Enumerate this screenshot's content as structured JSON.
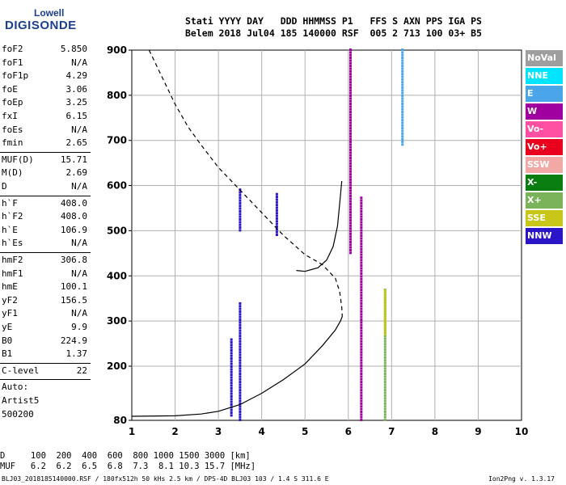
{
  "logo": {
    "line1": "Lowell",
    "line2": "DIGISONDE"
  },
  "header": {
    "row1": "Stati YYYY DAY   DDD HHMMSS P1   FFS S AXN PPS IGA PS",
    "row2": "Belem 2018 Jul04 185 140000 RSF  005 2 713 100 03+ B5"
  },
  "params": {
    "group1": [
      {
        "label": "foF2",
        "value": "5.850"
      },
      {
        "label": "foF1",
        "value": "N/A"
      },
      {
        "label": "foF1p",
        "value": "4.29"
      },
      {
        "label": "foE",
        "value": "3.06"
      },
      {
        "label": "foEp",
        "value": "3.25"
      },
      {
        "label": "fxI",
        "value": "6.15"
      },
      {
        "label": "foEs",
        "value": "N/A"
      },
      {
        "label": "fmin",
        "value": "2.65"
      }
    ],
    "group2": [
      {
        "label": "MUF(D)",
        "value": "15.71"
      },
      {
        "label": "M(D)",
        "value": "2.69"
      },
      {
        "label": "D",
        "value": "N/A"
      }
    ],
    "group3": [
      {
        "label": "h`F",
        "value": "408.0"
      },
      {
        "label": "h`F2",
        "value": "408.0"
      },
      {
        "label": "h`E",
        "value": "106.9"
      },
      {
        "label": "h`Es",
        "value": "N/A"
      }
    ],
    "group4": [
      {
        "label": "hmF2",
        "value": "306.8"
      },
      {
        "label": "hmF1",
        "value": "N/A"
      },
      {
        "label": "hmE",
        "value": "100.1"
      },
      {
        "label": "yF2",
        "value": "156.5"
      },
      {
        "label": "yF1",
        "value": "N/A"
      },
      {
        "label": "yE",
        "value": "9.9"
      },
      {
        "label": "B0",
        "value": "224.9"
      },
      {
        "label": "B1",
        "value": "1.37"
      }
    ],
    "group5": [
      {
        "label": "C-level",
        "value": "22"
      }
    ],
    "group6": [
      {
        "label": "Auto:",
        "value": ""
      },
      {
        "label": "Artist5",
        "value": ""
      },
      {
        "label": "500200",
        "value": ""
      }
    ]
  },
  "legend": [
    {
      "label": "NoVal",
      "color": "#9e9e9e",
      "text_color": "#ffffff"
    },
    {
      "label": "NNE",
      "color": "#00e5ff",
      "text_color": "#ffffff"
    },
    {
      "label": "E",
      "color": "#4aa6e8",
      "text_color": "#ffffff"
    },
    {
      "label": "W",
      "color": "#a0009f",
      "text_color": "#ffffff"
    },
    {
      "label": "Vo-",
      "color": "#ff4fa3",
      "text_color": "#ffffff"
    },
    {
      "label": "Vo+",
      "color": "#e8001c",
      "text_color": "#ffffff"
    },
    {
      "label": "SSW",
      "color": "#f2a9a6",
      "text_color": "#ffffff"
    },
    {
      "label": "X-",
      "color": "#0a7d10",
      "text_color": "#ffffff"
    },
    {
      "label": "X+",
      "color": "#7ab35a",
      "text_color": "#ffffff"
    },
    {
      "label": "SSE",
      "color": "#c9c61a",
      "text_color": "#ffffff"
    },
    {
      "label": "NNW",
      "color": "#2a16c8",
      "text_color": "#ffffff"
    }
  ],
  "footer": {
    "row1": "D     100  200  400  600  800 1000 1500 3000 [km]",
    "row2": "MUF   6.2  6.2  6.5  6.8  7.3  8.1 10.3 15.7 [MHz]"
  },
  "caption": "BLJ03_2018185140000.RSF / 180fx512h 50 kHs 2.5 km / DPS-4D BLJ03 103 / 1.4 S 311.6 E",
  "version": "Ion2Png v. 1.3.17",
  "chart_data": {
    "type": "scatter",
    "xlabel": "",
    "ylabel": "",
    "xlim": [
      1,
      10
    ],
    "ylim": [
      80,
      900
    ],
    "xticks": [
      1,
      2,
      3,
      4,
      5,
      6,
      7,
      8,
      9,
      10
    ],
    "yticks": [
      80,
      200,
      300,
      400,
      500,
      600,
      700,
      800,
      900
    ],
    "grid": true,
    "series": [
      {
        "style": "dashed",
        "points": [
          [
            1.4,
            900
          ],
          [
            1.7,
            840
          ],
          [
            2.0,
            780
          ],
          [
            2.3,
            730
          ],
          [
            2.6,
            690
          ],
          [
            3.0,
            640
          ],
          [
            3.5,
            590
          ],
          [
            4.0,
            540
          ],
          [
            4.5,
            490
          ],
          [
            5.0,
            447
          ],
          [
            5.4,
            425
          ],
          [
            5.7,
            395
          ],
          [
            5.8,
            365
          ],
          [
            5.85,
            330
          ],
          [
            5.86,
            310
          ]
        ]
      },
      {
        "style": "solid",
        "points": [
          [
            1.0,
            89
          ],
          [
            2.0,
            90
          ],
          [
            2.6,
            94
          ],
          [
            3.0,
            100
          ],
          [
            3.5,
            115
          ],
          [
            4.0,
            140
          ],
          [
            4.5,
            170
          ],
          [
            5.0,
            205
          ],
          [
            5.4,
            245
          ],
          [
            5.7,
            280
          ],
          [
            5.82,
            300
          ],
          [
            5.86,
            310
          ]
        ]
      },
      {
        "style": "solid",
        "points": [
          [
            4.8,
            412
          ],
          [
            5.0,
            410
          ],
          [
            5.3,
            418
          ],
          [
            5.5,
            435
          ],
          [
            5.65,
            465
          ],
          [
            5.75,
            510
          ],
          [
            5.8,
            560
          ],
          [
            5.85,
            610
          ]
        ]
      }
    ],
    "echoes": [
      {
        "color": "#a0009f",
        "x": 6.3,
        "y0": 80,
        "y1": 575
      },
      {
        "color": "#a0009f",
        "x": 6.05,
        "y0": 450,
        "y1": 900
      },
      {
        "color": "#2a16c8",
        "x": 3.5,
        "y0": 80,
        "y1": 340
      },
      {
        "color": "#2a16c8",
        "x": 3.3,
        "y0": 90,
        "y1": 260
      },
      {
        "color": "#2a16c8",
        "x": 4.35,
        "y0": 490,
        "y1": 580
      },
      {
        "color": "#2a16c8",
        "x": 3.5,
        "y0": 500,
        "y1": 590
      },
      {
        "color": "#7ab35a",
        "x": 6.85,
        "y0": 80,
        "y1": 370
      },
      {
        "color": "#c9c61a",
        "x": 6.85,
        "y0": 270,
        "y1": 370
      },
      {
        "color": "#4aa6e8",
        "x": 7.25,
        "y0": 690,
        "y1": 900
      }
    ]
  }
}
